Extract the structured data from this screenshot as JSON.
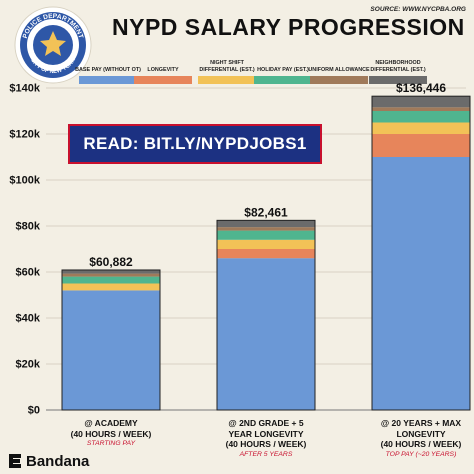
{
  "header": {
    "title": "NYPD SALARY PROGRESSION",
    "source": "SOURCE: WWW.NYCPBA.ORG"
  },
  "logo": {
    "text": "POLICE DEPARTMENT",
    "subtext": "CITY OF NEW YORK"
  },
  "banner": {
    "text": "READ: BIT.LY/NYPDJOBS1"
  },
  "brand": {
    "name": "Bandana"
  },
  "colors": {
    "base": "#6b98d6",
    "longevity": "#e7855b",
    "night": "#f2c257",
    "holiday": "#4fb58f",
    "uniform": "#a07a5a",
    "neighborhood": "#6b6b6b",
    "banner": "#1c3182",
    "accent": "#c8102e"
  },
  "chart_data": {
    "type": "bar",
    "stacked": true,
    "title": "NYPD SALARY PROGRESSION",
    "xlabel": "",
    "ylabel": "",
    "ylim": [
      0,
      140000
    ],
    "yticks": [
      "$0",
      "$20k",
      "$40k",
      "$60k",
      "$80k",
      "$100k",
      "$120k",
      "$140k"
    ],
    "grid": true,
    "legend": "top",
    "categories": [
      {
        "lines": [
          "@ ACADEMY",
          "(40 HOURS / WEEK)"
        ],
        "sub": "STARTING PAY"
      },
      {
        "lines": [
          "@ 2ND GRADE + 5",
          "YEAR LONGEVITY",
          "(40 HOURS / WEEK)"
        ],
        "sub": "AFTER 5 YEARS"
      },
      {
        "lines": [
          "@ 20 YEARS + MAX",
          "LONGEVITY",
          "(40 HOURS / WEEK)"
        ],
        "sub": "TOP PAY (~20 YEARS)"
      }
    ],
    "totals": [
      "$60,882",
      "$82,461",
      "$136,446"
    ],
    "series": [
      {
        "name": "BASE PAY (WITHOUT OT)",
        "key": "base",
        "values": [
          52000,
          66000,
          110000
        ]
      },
      {
        "name": "LONGEVITY",
        "key": "longevity",
        "values": [
          0,
          4000,
          10000
        ]
      },
      {
        "name": "NIGHT SHIFT DIFFERENTIAL (EST.)",
        "key": "night",
        "values": [
          3000,
          4000,
          5000
        ]
      },
      {
        "name": "HOLIDAY PAY (EST.)",
        "key": "holiday",
        "values": [
          3000,
          4000,
          5000
        ]
      },
      {
        "name": "UNIFORM ALLOWANCE",
        "key": "uniform",
        "values": [
          1300,
          1500,
          1600
        ]
      },
      {
        "name": "NEIGHBORHOOD DIFFERENTIAL (EST.)",
        "key": "neighborhood",
        "values": [
          1582,
          2961,
          4846
        ]
      }
    ]
  }
}
